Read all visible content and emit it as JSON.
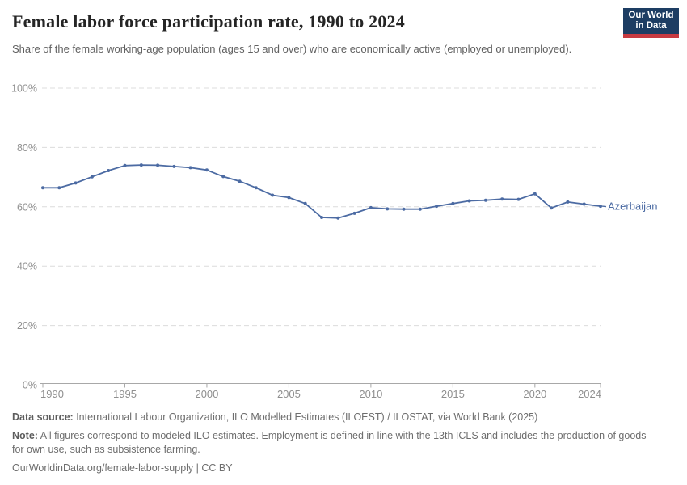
{
  "header": {
    "title": "Female labor force participation rate, 1990 to 2024",
    "subtitle": "Share of the female working-age population (ages 15 and over) who are economically active (employed or unemployed).",
    "logo": {
      "line1": "Our World",
      "line2": "in Data",
      "bg_color": "#1d3d63",
      "accent_color": "#c73a41"
    }
  },
  "chart_data": {
    "type": "line",
    "title": "Female labor force participation rate, 1990 to 2024",
    "xlabel": "",
    "ylabel": "",
    "xlim": [
      1990,
      2024
    ],
    "ylim": [
      0,
      100
    ],
    "grid": "horizontal-dashed",
    "legend_position": "line-end-label",
    "x": [
      1990,
      1991,
      1992,
      1993,
      1994,
      1995,
      1996,
      1997,
      1998,
      1999,
      2000,
      2001,
      2002,
      2003,
      2004,
      2005,
      2006,
      2007,
      2008,
      2009,
      2010,
      2011,
      2012,
      2013,
      2014,
      2015,
      2016,
      2017,
      2018,
      2019,
      2020,
      2021,
      2022,
      2023,
      2024
    ],
    "series": [
      {
        "name": "Azerbaijan",
        "color": "#4c6ba3",
        "values": [
          66.4,
          66.4,
          68.0,
          70.1,
          72.2,
          73.9,
          74.1,
          74.0,
          73.6,
          73.2,
          72.4,
          70.2,
          68.6,
          66.4,
          63.9,
          63.1,
          61.1,
          56.4,
          56.2,
          57.8,
          59.7,
          59.3,
          59.2,
          59.2,
          60.2,
          61.1,
          62.0,
          62.2,
          62.6,
          62.5,
          64.4,
          59.6,
          61.6,
          60.9,
          60.2
        ]
      }
    ],
    "xticks": [
      1990,
      1995,
      2000,
      2005,
      2010,
      2015,
      2020,
      2024
    ],
    "yticks": [
      {
        "value": 0,
        "label": "0%"
      },
      {
        "value": 20,
        "label": "20%"
      },
      {
        "value": 40,
        "label": "40%"
      },
      {
        "value": 60,
        "label": "60%"
      },
      {
        "value": 80,
        "label": "80%"
      },
      {
        "value": 100,
        "label": "100%"
      }
    ],
    "colors": {
      "gridline": "#dcdcdc",
      "axis": "#a8a8a8",
      "tick_label": "#8f8f8f"
    }
  },
  "footer": {
    "data_source_label": "Data source:",
    "data_source_text": " International Labour Organization, ILO Modelled Estimates (ILOEST) / ILOSTAT, via World Bank (2025)",
    "note_label": "Note:",
    "note_text": " All figures correspond to modeled ILO estimates. Employment is defined in line with the 13th ICLS and includes the production of goods for own use, such as subsistence farming.",
    "citation": "OurWorldinData.org/female-labor-supply | CC BY"
  }
}
